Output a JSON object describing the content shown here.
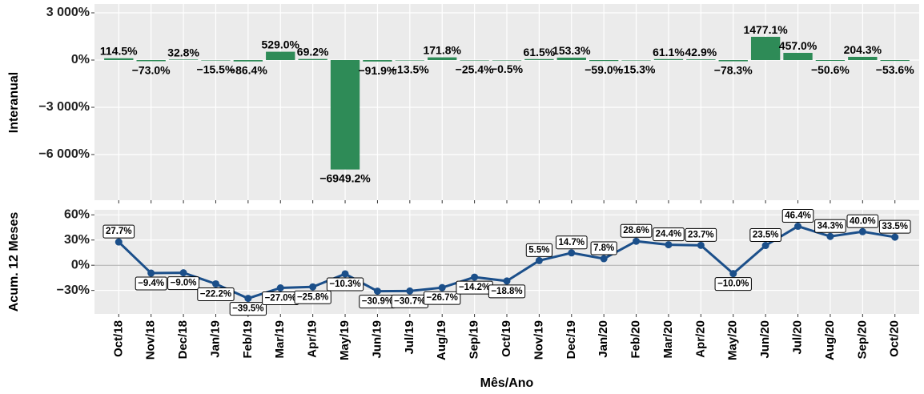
{
  "chart_data": [
    {
      "type": "bar",
      "y_label": "Interanual",
      "color": "#2e8b57",
      "values": [
        114.5,
        -73.0,
        32.8,
        -15.5,
        -86.4,
        529.0,
        69.2,
        -6949.2,
        -91.9,
        -13.5,
        171.8,
        -25.4,
        -0.5,
        61.5,
        153.3,
        -59.0,
        -15.3,
        61.1,
        42.9,
        -78.3,
        1477.1,
        457.0,
        -50.6,
        204.3,
        -53.6
      ],
      "value_labels": [
        "114.5%",
        "−73.0%",
        "32.8%",
        "−15.5%",
        "−86.4%",
        "529.0%",
        "69.2%",
        "−6949.2%",
        "−91.9%",
        "−13.5%",
        "171.8%",
        "−25.4%",
        "−0.5%",
        "61.5%",
        "153.3%",
        "−59.0%",
        "−15.3%",
        "61.1%",
        "42.9%",
        "−78.3%",
        "1477.1%",
        "457.0%",
        "−50.6%",
        "204.3%",
        "−53.6%"
      ],
      "ylim": [
        -8900,
        3560
      ],
      "yticks": [
        {
          "value": 3000,
          "label": "3 000%"
        },
        {
          "value": 0,
          "label": "0%"
        },
        {
          "value": -3000,
          "label": "−3 000%"
        },
        {
          "value": -6000,
          "label": "−6 000%"
        }
      ],
      "grid": true
    },
    {
      "type": "line",
      "y_label": "Acum. 12 Meses",
      "x_label": "Mês/Ano",
      "color": "#1b4f8a",
      "categories": [
        "Oct/18",
        "Nov/18",
        "Dec/18",
        "Jan/19",
        "Feb/19",
        "Mar/19",
        "Apr/19",
        "May/19",
        "Jun/19",
        "Jul/19",
        "Aug/19",
        "Sep/19",
        "Oct/19",
        "Nov/19",
        "Dec/19",
        "Jan/20",
        "Feb/20",
        "Mar/20",
        "Apr/20",
        "May/20",
        "Jun/20",
        "Jul/20",
        "Aug/20",
        "Sep/20",
        "Oct/20"
      ],
      "values": [
        27.7,
        -9.4,
        -9.0,
        -22.2,
        -39.5,
        -27.0,
        -25.8,
        -10.3,
        -30.9,
        -30.7,
        -26.7,
        -14.2,
        -18.8,
        5.5,
        14.7,
        7.8,
        28.6,
        24.4,
        23.7,
        -10.0,
        23.5,
        46.4,
        34.3,
        40.0,
        33.5
      ],
      "value_labels": [
        "27.7%",
        "−9.4%",
        "−9.0%",
        "−22.2%",
        "−39.5%",
        "−27.0%",
        "−25.8%",
        "−10.3%",
        "−30.9%",
        "−30.7%",
        "−26.7%",
        "−14.2%",
        "−18.8%",
        "5.5%",
        "14.7%",
        "7.8%",
        "28.6%",
        "24.4%",
        "23.7%",
        "−10.0%",
        "23.5%",
        "46.4%",
        "34.3%",
        "40.0%",
        "33.5%"
      ],
      "ylim": [
        -58,
        66
      ],
      "yticks": [
        {
          "value": 60,
          "label": "60%"
        },
        {
          "value": 30,
          "label": "30%"
        },
        {
          "value": 0,
          "label": "0%"
        },
        {
          "value": -30,
          "label": "−30%"
        }
      ],
      "grid": true
    }
  ]
}
